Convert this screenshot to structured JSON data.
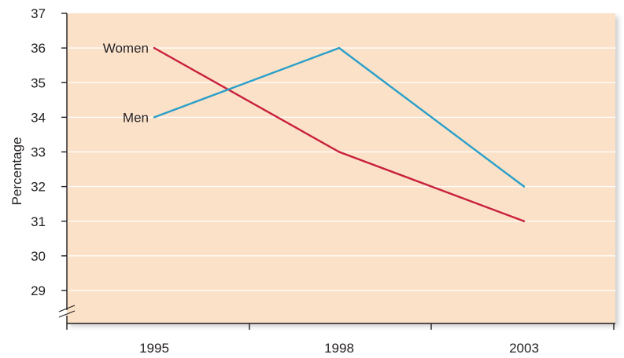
{
  "chart_data": {
    "type": "line",
    "title": "",
    "xlabel": "",
    "ylabel": "Percentage",
    "categories": [
      "1995",
      "1998",
      "2003"
    ],
    "ylim": [
      28.3,
      37
    ],
    "yticks": [
      29,
      30,
      31,
      32,
      33,
      34,
      35,
      36,
      37
    ],
    "axis_break": true,
    "grid": true,
    "legend": "inline labels at line starts",
    "series": [
      {
        "name": "Women",
        "values": [
          36,
          33,
          31
        ],
        "color": "#c8203c"
      },
      {
        "name": "Men",
        "values": [
          34,
          36,
          32
        ],
        "color": "#2a9fc9"
      }
    ],
    "colors": {
      "plot_background": "#fbe1c8",
      "gridline": "#ffffff",
      "axis": "#231f20",
      "text": "#231f20"
    }
  }
}
